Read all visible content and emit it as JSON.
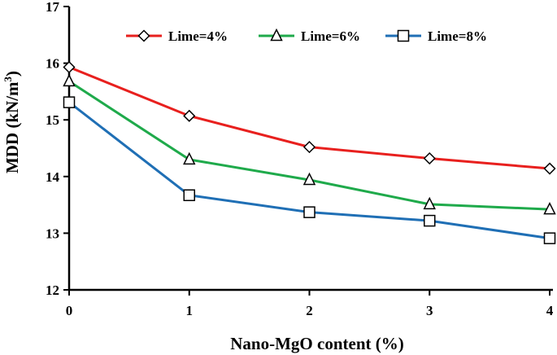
{
  "chart_data": {
    "type": "line",
    "title": "",
    "xlabel": "Nano-MgO content (%)",
    "ylabel_main": "MDD (kN/m",
    "ylabel_sup": "3",
    "ylabel_end": ")",
    "x": [
      0,
      1,
      2,
      3,
      4
    ],
    "xlim": [
      0,
      4
    ],
    "ylim": [
      12,
      17
    ],
    "xticks": [
      "0",
      "1",
      "2",
      "3",
      "4"
    ],
    "yticks": [
      "12",
      "13",
      "14",
      "15",
      "16",
      "17"
    ],
    "grid": false,
    "legend_position": "top",
    "series": [
      {
        "name": "Lime=4%",
        "color": "#e8201e",
        "marker": "diamond",
        "values": [
          15.93,
          15.07,
          14.52,
          14.32,
          14.14
        ]
      },
      {
        "name": "Lime=6%",
        "color": "#1faa4b",
        "marker": "triangle",
        "values": [
          15.68,
          14.3,
          13.94,
          13.51,
          13.42
        ]
      },
      {
        "name": "Lime=8%",
        "color": "#1f6fb5",
        "marker": "square",
        "values": [
          15.31,
          13.67,
          13.37,
          13.22,
          12.91
        ]
      }
    ]
  }
}
